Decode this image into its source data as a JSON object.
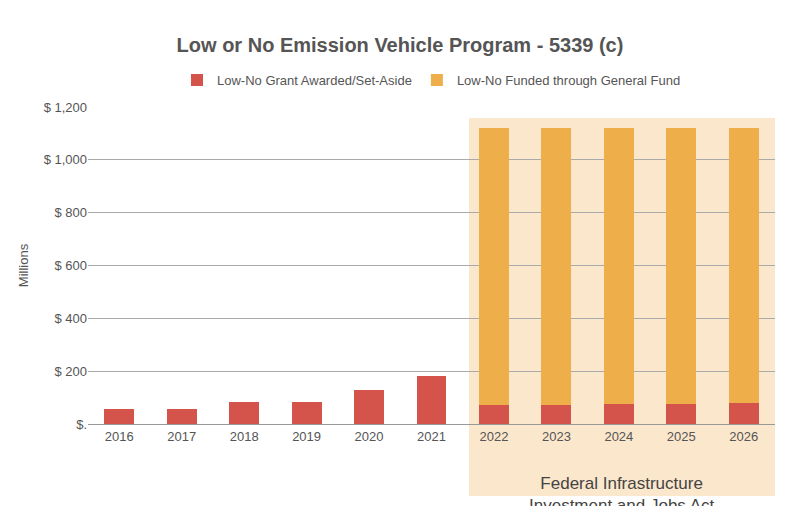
{
  "chart_data": {
    "type": "bar",
    "title": "Low or No Emission Vehicle Program - 5339 (c)",
    "ylabel": "Millions",
    "categories": [
      "2016",
      "2017",
      "2018",
      "2019",
      "2020",
      "2021",
      "2022",
      "2023",
      "2024",
      "2025",
      "2026"
    ],
    "series": [
      {
        "name": "Low-No Grant Awarded/Set-Aside",
        "color": "#d4544c",
        "values": [
          55,
          55,
          85,
          85,
          130,
          182,
          71,
          71,
          74,
          76,
          78
        ]
      },
      {
        "name": "Low-No Funded through General Fund",
        "color": "#eeaf4b",
        "values": [
          null,
          null,
          null,
          null,
          null,
          null,
          1051,
          1051,
          1048,
          1046,
          1044
        ]
      }
    ],
    "stacked": true,
    "ylim": [
      0,
      1200
    ],
    "yticks": [
      {
        "value": 0,
        "label": "$."
      },
      {
        "value": 200,
        "label": "$ 200"
      },
      {
        "value": 400,
        "label": "$ 400"
      },
      {
        "value": 600,
        "label": "$ 600"
      },
      {
        "value": 800,
        "label": "$ 800"
      },
      {
        "value": 1000,
        "label": "$ 1,000"
      },
      {
        "value": 1200,
        "label": "$ 1,200"
      }
    ],
    "grid": true,
    "legend": "top",
    "annotations": [
      "Federal Infrastructure\nInvestment and Jobs Act"
    ]
  }
}
